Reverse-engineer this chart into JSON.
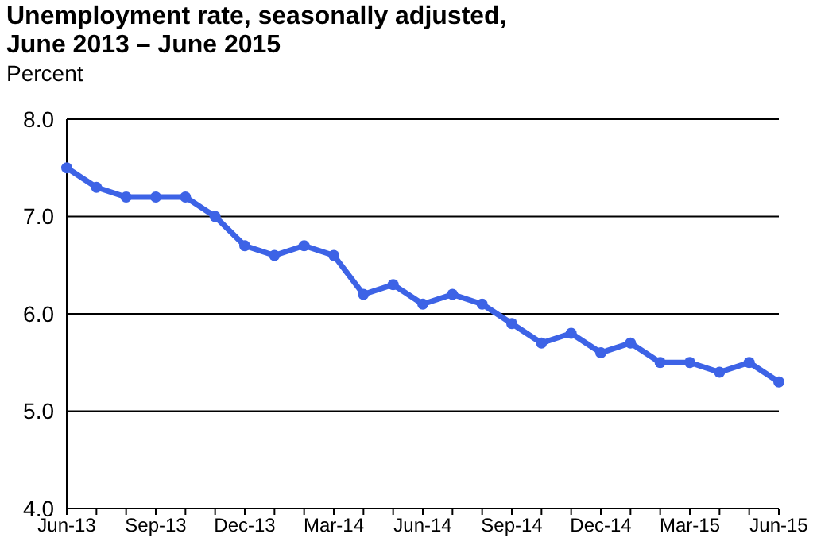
{
  "chart_data": {
    "type": "line",
    "title": "Unemployment rate, seasonally adjusted,\nJune 2013 – June 2015",
    "ylabel": "Percent",
    "categories": [
      "Jun-13",
      null,
      null,
      "Sep-13",
      null,
      null,
      "Dec-13",
      null,
      null,
      "Mar-14",
      null,
      null,
      "Jun-14",
      null,
      null,
      "Sep-14",
      null,
      null,
      "Dec-14",
      null,
      null,
      "Mar-15",
      null,
      null,
      "Jun-15"
    ],
    "series": [
      {
        "color": "#3d63e6",
        "values": [
          7.5,
          7.3,
          7.2,
          7.2,
          7.2,
          7.0,
          6.7,
          6.6,
          6.7,
          6.6,
          6.2,
          6.3,
          6.1,
          6.2,
          6.1,
          5.9,
          5.7,
          5.8,
          5.6,
          5.7,
          5.5,
          5.5,
          5.4,
          5.5,
          5.3
        ]
      }
    ],
    "ylim": [
      4,
      8
    ],
    "yticks": [
      {
        "value": 4,
        "label": "4.0"
      },
      {
        "value": 5,
        "label": "5.0"
      },
      {
        "value": 6,
        "label": "6.0"
      },
      {
        "value": 7,
        "label": "7.0"
      },
      {
        "value": 8,
        "label": "8.0"
      }
    ],
    "grid": "y",
    "marker": "circle",
    "line_style": "solid",
    "legend": false
  }
}
